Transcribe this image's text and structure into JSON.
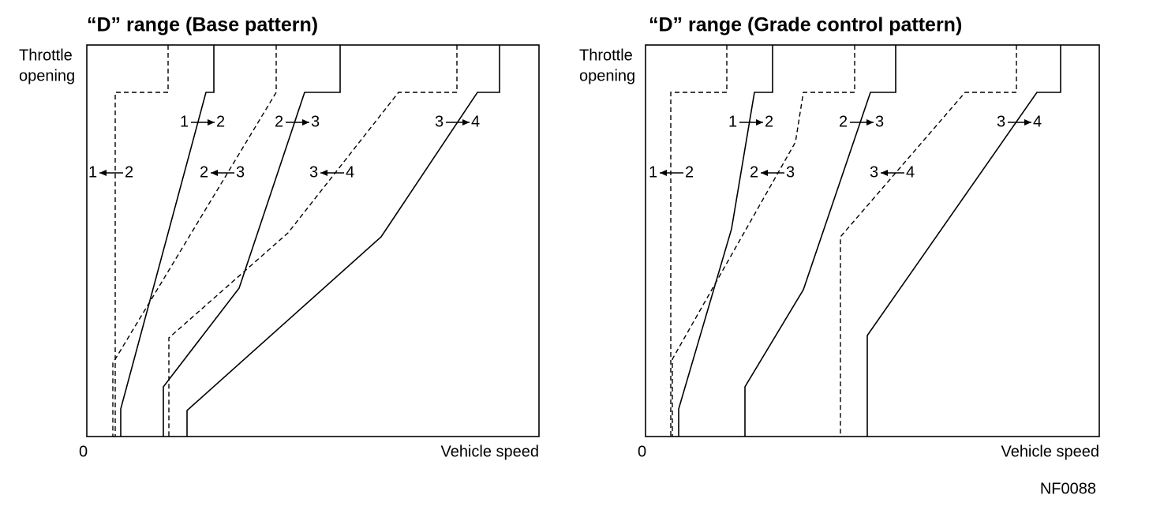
{
  "panels": [
    {
      "title": "“D” range (Base pattern)",
      "y_axis_label": [
        "Throttle",
        "opening"
      ],
      "origin": "0",
      "x_axis_label": "Vehicle speed",
      "shift_labels": [
        {
          "left": "1",
          "right": "2",
          "arrow": "right"
        },
        {
          "left": "2",
          "right": "3",
          "arrow": "right"
        },
        {
          "left": "3",
          "right": "4",
          "arrow": "right"
        },
        {
          "left": "1",
          "right": "2",
          "arrow": "left"
        },
        {
          "left": "2",
          "right": "3",
          "arrow": "left"
        },
        {
          "left": "3",
          "right": "4",
          "arrow": "left"
        }
      ]
    },
    {
      "title": "“D” range (Grade control pattern)",
      "y_axis_label": [
        "Throttle",
        "opening"
      ],
      "origin": "0",
      "x_axis_label": "Vehicle speed",
      "shift_labels": [
        {
          "left": "1",
          "right": "2",
          "arrow": "right"
        },
        {
          "left": "2",
          "right": "3",
          "arrow": "right"
        },
        {
          "left": "3",
          "right": "4",
          "arrow": "right"
        },
        {
          "left": "1",
          "right": "2",
          "arrow": "left"
        },
        {
          "left": "2",
          "right": "3",
          "arrow": "left"
        },
        {
          "left": "3",
          "right": "4",
          "arrow": "left"
        }
      ]
    }
  ],
  "figure_id": "NF0088"
}
